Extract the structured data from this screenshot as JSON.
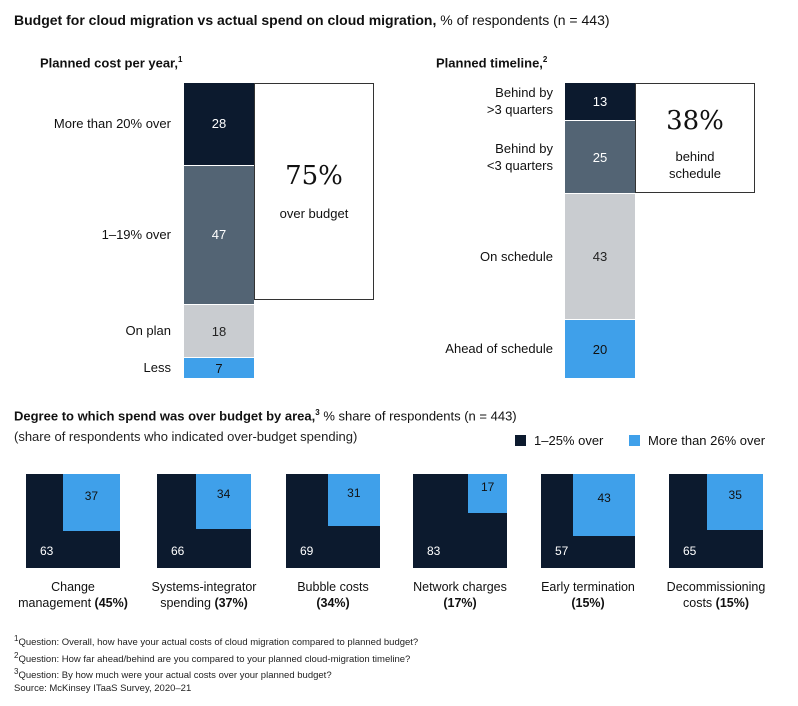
{
  "title": {
    "bold": "Budget for cloud migration vs actual spend on cloud migration,",
    "rest": " % of respondents (n = 443)"
  },
  "colors": {
    "navy": "#0c1a2e",
    "slate": "#536474",
    "gray": "#c9ccd0",
    "blue": "#3fa0ea"
  },
  "chart_data": [
    {
      "type": "bar",
      "stacked": true,
      "title": "Planned cost per year,",
      "footnote_ref": "1",
      "categories": [
        "More than 20% over",
        "1–19% over",
        "On plan",
        "Less"
      ],
      "values": [
        28,
        47,
        18,
        7
      ],
      "callout": {
        "value": "75%",
        "text": "over budget"
      }
    },
    {
      "type": "bar",
      "stacked": true,
      "title": "Planned timeline,",
      "footnote_ref": "2",
      "categories": [
        "Behind by >3 quarters",
        "Behind by <3 quarters",
        "On schedule",
        "Ahead of schedule"
      ],
      "category_lines": [
        [
          "Behind by",
          ">3 quarters"
        ],
        [
          "Behind by",
          "<3 quarters"
        ],
        [
          "On schedule"
        ],
        [
          "Ahead of schedule"
        ]
      ],
      "values": [
        13,
        25,
        43,
        20
      ],
      "callout": {
        "value": "38%",
        "text_lines": [
          "behind",
          "schedule"
        ]
      }
    },
    {
      "type": "area",
      "title": "Degree to which spend was over budget by area,",
      "footnote_ref": "3",
      "title_rest": " % share of respondents (n = 443)",
      "subtitle": "(share of respondents who indicated over-budget spending)",
      "legend": [
        "1–25% over",
        "More than 26% over"
      ],
      "legend_placement": "top-right",
      "series": [
        {
          "name": "1–25% over",
          "values": [
            63,
            66,
            69,
            83,
            57,
            65
          ]
        },
        {
          "name": "More than 26% over",
          "values": [
            37,
            34,
            31,
            17,
            43,
            35
          ]
        }
      ],
      "categories": [
        {
          "line1": "Change",
          "line2": "management",
          "pct": "(45%)"
        },
        {
          "line1": "Systems-integrator",
          "line2": "spending",
          "pct": "(37%)"
        },
        {
          "line1": "Bubble costs",
          "line2": "",
          "pct": "(34%)"
        },
        {
          "line1": "Network charges",
          "line2": "",
          "pct": "(17%)"
        },
        {
          "line1": "Early termination",
          "line2": "",
          "pct": "(15%)"
        },
        {
          "line1": "Decommissioning",
          "line2": "costs",
          "pct": "(15%)"
        }
      ]
    }
  ],
  "footnotes": [
    {
      "sup": "1",
      "text": "Question: Overall, how have your actual costs of cloud migration compared to planned budget?"
    },
    {
      "sup": "2",
      "text": "Question: How far ahead/behind are you compared to your planned cloud-migration timeline?"
    },
    {
      "sup": "3",
      "text": "Question: By how much were your actual costs over your planned budget?"
    }
  ],
  "source": "Source: McKinsey ITaaS Survey, 2020–21"
}
